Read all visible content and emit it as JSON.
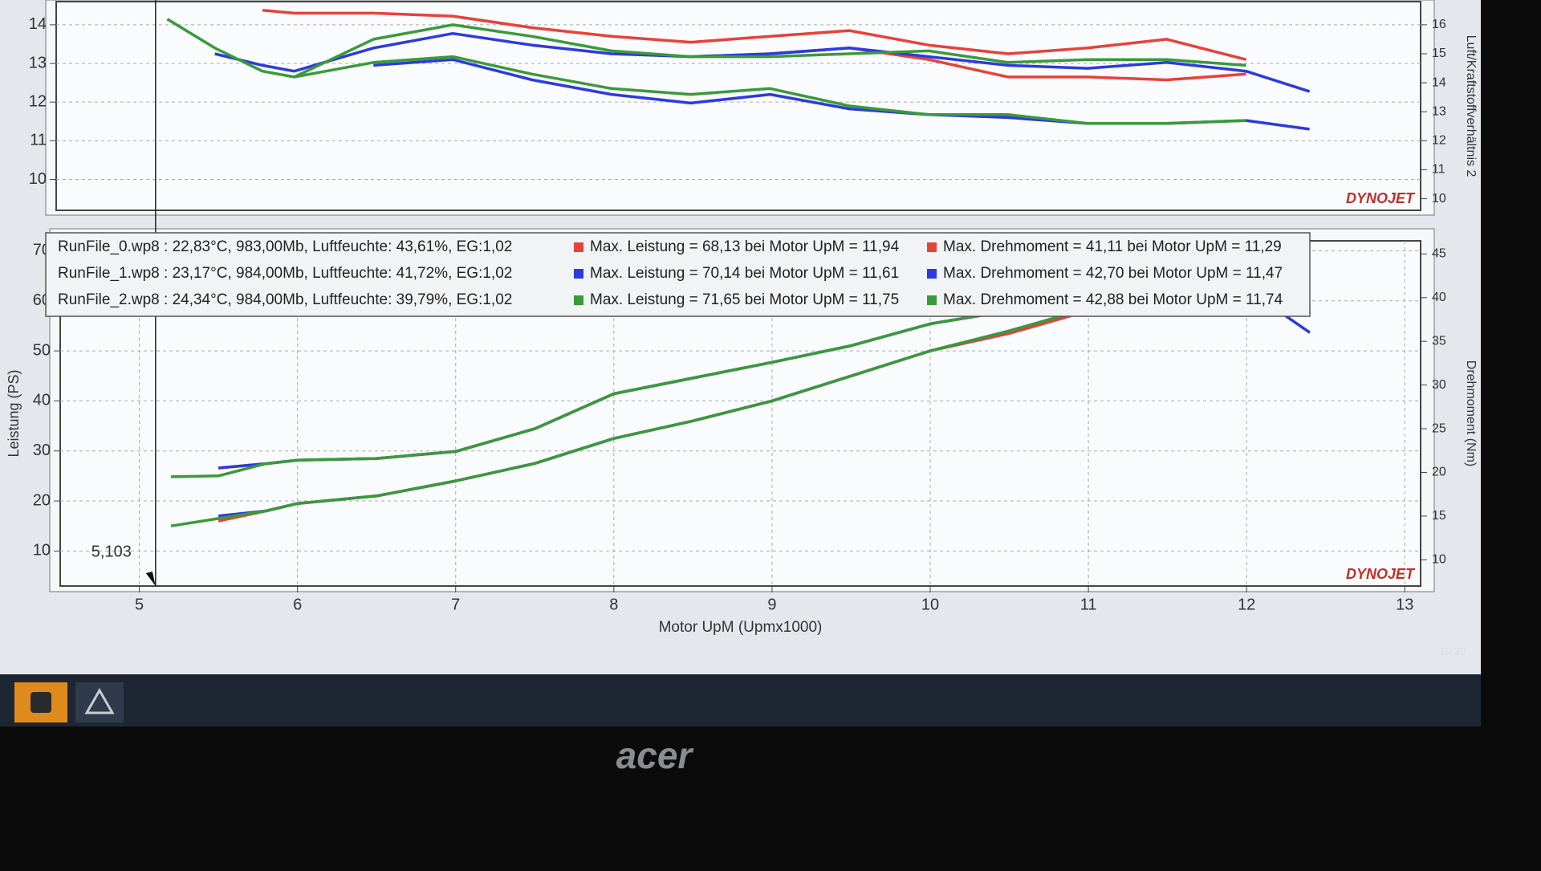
{
  "chart_data": [
    {
      "type": "line",
      "y2label": "Luft/Kraftstoffverhältnis 2",
      "watermark": "DYNOJET",
      "x": [
        5.2,
        5.5,
        5.8,
        6,
        6.5,
        7,
        7.5,
        8,
        8.5,
        9,
        9.5,
        10,
        10.5,
        11,
        11.5,
        12,
        12.4
      ],
      "xlim": [
        4.5,
        13.1
      ],
      "ylim": [
        9.2,
        14.6
      ],
      "yticks": [
        10,
        11,
        12,
        13,
        14
      ],
      "y2lim": [
        9.6,
        16.8
      ],
      "y2ticks": [
        10,
        11,
        12,
        13,
        14,
        15,
        16
      ],
      "grid": true,
      "series": [
        {
          "color": "#e8413a",
          "axis": "y2",
          "values": [
            null,
            null,
            16.5,
            16.4,
            16.4,
            16.3,
            15.9,
            15.6,
            15.4,
            15.6,
            15.8,
            15.3,
            15.0,
            15.2,
            15.5,
            14.8,
            null
          ]
        },
        {
          "color": "#e8413a",
          "axis": "y2",
          "values": [
            null,
            null,
            null,
            null,
            null,
            null,
            null,
            null,
            14.9,
            15.0,
            15.2,
            14.8,
            14.2,
            14.2,
            14.1,
            14.3,
            null
          ]
        },
        {
          "color": "#2b3be0",
          "axis": "y2",
          "values": [
            null,
            15.0,
            14.6,
            14.4,
            15.2,
            15.7,
            15.3,
            15.0,
            14.9,
            15.0,
            15.2,
            14.9,
            14.6,
            14.5,
            14.7,
            14.4,
            13.7
          ]
        },
        {
          "color": "#2b3be0",
          "axis": "y2",
          "values": [
            null,
            null,
            null,
            null,
            14.6,
            14.8,
            14.1,
            13.6,
            13.3,
            13.6,
            13.1,
            12.9,
            12.8,
            12.6,
            12.6,
            12.7,
            12.4
          ]
        },
        {
          "color": "#3a9a3a",
          "axis": "y2",
          "values": [
            16.2,
            15.2,
            14.4,
            14.2,
            15.5,
            16.0,
            15.6,
            15.1,
            14.9,
            14.9,
            15.0,
            15.1,
            14.7,
            14.8,
            14.8,
            14.6,
            null
          ]
        },
        {
          "color": "#3a9a3a",
          "axis": "y2",
          "values": [
            null,
            null,
            null,
            14.2,
            14.7,
            14.9,
            14.3,
            13.8,
            13.6,
            13.8,
            13.2,
            12.9,
            12.9,
            12.6,
            12.6,
            12.7,
            null
          ]
        }
      ]
    },
    {
      "type": "line",
      "xlabel": "Motor UpM (Upmx1000)",
      "ylabel": "Leistung (PS)",
      "y2label": "Drehmoment (Nm)",
      "watermark": "DYNOJET",
      "x": [
        5.2,
        5.5,
        5.8,
        6,
        6.5,
        7,
        7.5,
        8,
        8.5,
        9,
        9.5,
        10,
        10.5,
        11,
        11.5,
        12,
        12.4
      ],
      "xlim": [
        4.5,
        13.1
      ],
      "xticks": [
        5,
        6,
        7,
        8,
        9,
        10,
        11,
        12,
        13
      ],
      "ylim": [
        3,
        72
      ],
      "yticks": [
        10,
        20,
        30,
        40,
        50,
        60,
        70
      ],
      "y2lim": [
        7,
        46.5
      ],
      "y2ticks": [
        10,
        15,
        20,
        25,
        30,
        35,
        40,
        45
      ],
      "grid": true,
      "cursor": {
        "value": 5.103,
        "label": "5,103"
      },
      "series": [
        {
          "color": "#e8413a",
          "values": [
            null,
            16,
            18,
            19.5,
            21,
            24,
            27.5,
            32.5,
            36,
            40,
            45,
            50,
            53.5,
            58,
            63,
            68,
            null
          ]
        },
        {
          "color": "#2b3be0",
          "values": [
            null,
            17,
            18,
            19.5,
            21,
            24,
            27.5,
            32.5,
            36,
            40,
            45,
            50,
            54,
            58.5,
            64,
            68,
            58
          ]
        },
        {
          "color": "#3a9a3a",
          "values": [
            15,
            16.5,
            18,
            19.5,
            21,
            24,
            27.5,
            32.5,
            36,
            40,
            45,
            50,
            54,
            58.5,
            64,
            69,
            null
          ]
        },
        {
          "color": "#e8413a",
          "axis": "y2",
          "values": [
            null,
            20.5,
            21,
            21.4,
            21.6,
            22.4,
            25,
            29,
            30.8,
            32.6,
            34.5,
            37,
            38.5,
            40,
            41,
            40,
            null
          ]
        },
        {
          "color": "#2b3be0",
          "axis": "y2",
          "values": [
            null,
            20.5,
            21,
            21.4,
            21.6,
            22.4,
            25,
            29,
            30.8,
            32.6,
            34.5,
            37,
            38.5,
            40,
            42.5,
            41,
            36
          ]
        },
        {
          "color": "#3a9a3a",
          "axis": "y2",
          "values": [
            19.5,
            19.6,
            21,
            21.4,
            21.6,
            22.4,
            25,
            29,
            30.8,
            32.6,
            34.5,
            37,
            38.5,
            40,
            42.5,
            41,
            null
          ]
        }
      ],
      "info_lines": [
        [
          "RunFile_0.wp8 : 22,83°C, 983,00Mb, Luftfeuchte: 43,61%, EG:1,02",
          "Max. Leistung = 68,13 bei Motor UpM = 11,94",
          "Max. Drehmoment = 41,11 bei Motor UpM = 11,29"
        ],
        [
          "RunFile_1.wp8 : 23,17°C, 984,00Mb, Luftfeuchte: 41,72%, EG:1,02",
          "Max. Leistung = 70,14 bei Motor UpM = 11,61",
          "Max. Drehmoment = 42,70 bei Motor UpM = 11,47"
        ],
        [
          "RunFile_2.wp8 : 24,34°C, 984,00Mb, Luftfeuchte: 39,79%, EG:1,02",
          "Max. Leistung = 71,65 bei Motor UpM = 11,75",
          "Max. Drehmoment = 42,88 bei Motor UpM = 11,74"
        ]
      ]
    }
  ],
  "taskbar": {
    "clock": "19:30"
  },
  "monitor": {
    "brand": "acer"
  }
}
